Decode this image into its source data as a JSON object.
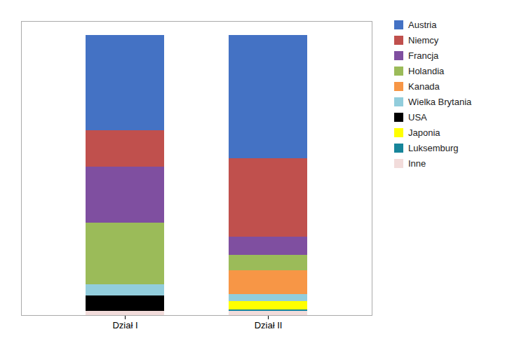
{
  "chart_data": {
    "type": "bar",
    "stacked": true,
    "grid": false,
    "legend": "right",
    "tick_labels": "x",
    "categories": [
      "Dział I",
      "Dział II"
    ],
    "ylim": [
      0,
      105
    ],
    "series": [
      {
        "name": "Austria",
        "color": "#4472C4",
        "values": [
          34.0,
          44.0
        ]
      },
      {
        "name": "Niemcy",
        "color": "#C0504D",
        "values": [
          13.0,
          28.0
        ]
      },
      {
        "name": "Francja",
        "color": "#7F4FA0",
        "values": [
          20.0,
          6.5
        ]
      },
      {
        "name": "Holandia",
        "color": "#9BBB59",
        "values": [
          22.0,
          5.5
        ]
      },
      {
        "name": "Kanada",
        "color": "#F79646",
        "values": [
          0.0,
          8.5
        ]
      },
      {
        "name": "Wielka Brytania",
        "color": "#92CDDC",
        "values": [
          4.0,
          2.5
        ]
      },
      {
        "name": "USA",
        "color": "#000000",
        "values": [
          5.5,
          0.0
        ]
      },
      {
        "name": "Japonia",
        "color": "#FFFF00",
        "values": [
          0.0,
          3.0
        ]
      },
      {
        "name": "Luksemburg",
        "color": "#17859A",
        "values": [
          0.0,
          0.5
        ]
      },
      {
        "name": "Inne",
        "color": "#F2DCDB",
        "values": [
          1.5,
          1.5
        ]
      }
    ]
  }
}
